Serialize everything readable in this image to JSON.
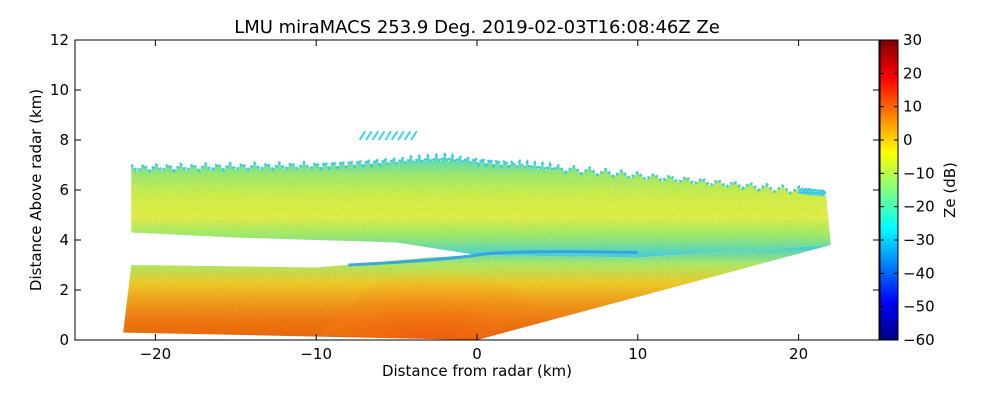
{
  "chart_data": {
    "type": "heatmap",
    "title": "LMU miraMACS 253.9 Deg. 2019-02-03T16:08:46Z  Ze",
    "xlabel": "Distance from radar (km)",
    "ylabel": "Distance Above radar  (km)",
    "xlim": [
      -25,
      25
    ],
    "ylim": [
      0,
      12
    ],
    "xticks": [
      -20,
      -10,
      0,
      10,
      20
    ],
    "yticks": [
      0,
      2,
      4,
      6,
      8,
      10,
      12
    ],
    "colorbar": {
      "label": "Ze (dB)",
      "range": [
        -60,
        30
      ],
      "ticks": [
        30,
        20,
        10,
        0,
        -10,
        -20,
        -30,
        -40,
        -50,
        -60
      ],
      "colormap": "jet"
    },
    "regions": [
      {
        "name": "upper cloud layer",
        "ze_range_dB": [
          -25,
          -8
        ],
        "outline": [
          [
            -21.5,
            6.9
          ],
          [
            -10,
            7.0
          ],
          [
            -2,
            7.3
          ],
          [
            5,
            6.9
          ],
          [
            20,
            6.0
          ],
          [
            21.7,
            5.9
          ],
          [
            22,
            3.8
          ],
          [
            10,
            3.3
          ],
          [
            0,
            3.4
          ],
          [
            -5,
            3.9
          ],
          [
            -15,
            4.1
          ],
          [
            -21.5,
            4.3
          ]
        ]
      },
      {
        "name": "lower precipitation layer",
        "ze_range_dB": [
          -15,
          20
        ],
        "outline": [
          [
            -21.5,
            3.0
          ],
          [
            -10,
            2.9
          ],
          [
            -3,
            3.3
          ],
          [
            0,
            3.4
          ],
          [
            10,
            3.3
          ],
          [
            22,
            3.8
          ],
          [
            0,
            0
          ],
          [
            -22,
            0.3
          ]
        ]
      },
      {
        "name": "isolated echo",
        "ze_range_dB": [
          -30,
          -25
        ],
        "outline": [
          [
            -7,
            8.3
          ],
          [
            -5,
            8.2
          ],
          [
            -7,
            7.9
          ],
          [
            -4.5,
            7.8
          ]
        ]
      }
    ]
  },
  "colors": {
    "jet": [
      "#000080",
      "#0000ff",
      "#0080ff",
      "#00ffff",
      "#80ff80",
      "#ffff00",
      "#ff8000",
      "#ff0000",
      "#800000"
    ],
    "upper_layer": [
      "#4fe0c9",
      "#a6f070",
      "#d7f54c",
      "#e8f54a",
      "#9ef073",
      "#45d4e6"
    ],
    "lower_layer": [
      "#3fd6e0",
      "#b2f06a",
      "#f4d12a",
      "#f8a21c",
      "#f67a12",
      "#f06a10"
    ]
  }
}
